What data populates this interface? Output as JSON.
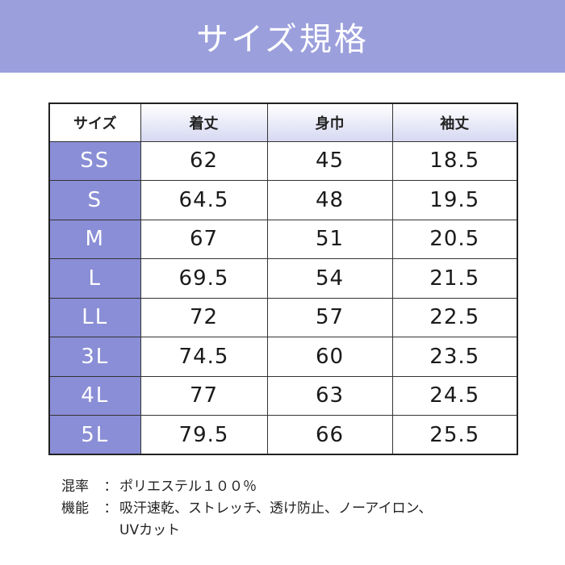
{
  "banner": {
    "title": "サイズ規格",
    "color": "#9b9fdc"
  },
  "table": {
    "headers": [
      "サイズ",
      "着丈",
      "身巾",
      "袖丈"
    ],
    "rows": [
      {
        "size": "SS",
        "length": "62",
        "width": "45",
        "sleeve": "18.5"
      },
      {
        "size": "S",
        "length": "64.5",
        "width": "48",
        "sleeve": "19.5"
      },
      {
        "size": "M",
        "length": "67",
        "width": "51",
        "sleeve": "20.5"
      },
      {
        "size": "L",
        "length": "69.5",
        "width": "54",
        "sleeve": "21.5"
      },
      {
        "size": "LL",
        "length": "72",
        "width": "57",
        "sleeve": "22.5"
      },
      {
        "size": "3L",
        "length": "74.5",
        "width": "60",
        "sleeve": "23.5"
      },
      {
        "size": "4L",
        "length": "77",
        "width": "63",
        "sleeve": "24.5"
      },
      {
        "size": "5L",
        "length": "79.5",
        "width": "66",
        "sleeve": "25.5"
      }
    ],
    "row_header_color": "#8a8ed6"
  },
  "notes": {
    "material_label": "混率",
    "material_value": "ポリエステル１００％",
    "function_label": "機能",
    "function_value_line1": "吸汗速乾、ストレッチ、透け防止、ノーアイロン、",
    "function_value_line2": "UVカット",
    "separator": "："
  }
}
